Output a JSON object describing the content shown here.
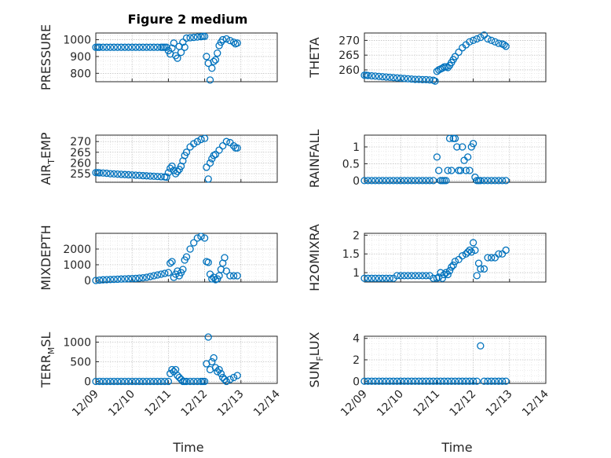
{
  "figure_title": "Figure 2 medium",
  "colors": {
    "series": "#0072BD",
    "axis": "#262626"
  },
  "chart_data": [
    {
      "type": "scatter",
      "title": "Figure 2 medium",
      "ylabel": "PRESSURE",
      "ylim": [
        750,
        1040
      ],
      "yticks": [
        800,
        900,
        1000
      ],
      "x": [
        0,
        0.05,
        0.1,
        0.2,
        0.3,
        0.4,
        0.5,
        0.6,
        0.7,
        0.8,
        0.9,
        1.0,
        1.1,
        1.2,
        1.3,
        1.4,
        1.5,
        1.6,
        1.7,
        1.8,
        1.85,
        1.9,
        1.95,
        2.0,
        2.05,
        2.1,
        2.15,
        2.2,
        2.25,
        2.3,
        2.35,
        2.4,
        2.45,
        2.5,
        2.6,
        2.7,
        2.8,
        2.9,
        2.95,
        3.0,
        3.05,
        3.1,
        3.15,
        3.2,
        3.25,
        3.3,
        3.35,
        3.4,
        3.45,
        3.5,
        3.6,
        3.7,
        3.8,
        3.85,
        3.9
      ],
      "y": [
        955,
        955,
        955,
        955,
        955,
        955,
        955,
        955,
        955,
        955,
        955,
        955,
        955,
        955,
        955,
        955,
        955,
        955,
        955,
        955,
        955,
        955,
        955,
        935,
        915,
        950,
        980,
        905,
        890,
        960,
        925,
        985,
        955,
        1010,
        1012,
        1014,
        1016,
        1018,
        1020,
        1020,
        900,
        860,
        760,
        830,
        870,
        880,
        920,
        965,
        985,
        1000,
        1005,
        995,
        985,
        975,
        980
      ],
      "grid": true
    },
    {
      "type": "scatter",
      "ylabel": "THETA",
      "ylim": [
        256,
        272.5
      ],
      "yticks": [
        260,
        265,
        270
      ],
      "x": [
        0,
        0.05,
        0.1,
        0.2,
        0.3,
        0.4,
        0.5,
        0.6,
        0.7,
        0.8,
        0.9,
        1.0,
        1.1,
        1.2,
        1.3,
        1.4,
        1.5,
        1.6,
        1.7,
        1.8,
        1.9,
        1.95,
        2.0,
        2.05,
        2.1,
        2.15,
        2.2,
        2.25,
        2.3,
        2.35,
        2.4,
        2.45,
        2.5,
        2.6,
        2.7,
        2.8,
        2.9,
        3.0,
        3.1,
        3.2,
        3.3,
        3.4,
        3.5,
        3.6,
        3.7,
        3.8,
        3.85,
        3.9
      ],
      "y": [
        258.2,
        258.2,
        258.1,
        258.0,
        257.9,
        257.8,
        257.7,
        257.6,
        257.5,
        257.4,
        257.3,
        257.2,
        257.1,
        257.0,
        256.9,
        256.8,
        256.8,
        256.7,
        256.7,
        256.6,
        256.5,
        256.2,
        259.5,
        260.0,
        260.3,
        260.6,
        261.0,
        261.0,
        260.8,
        261.5,
        262.5,
        263.5,
        264.5,
        266.0,
        267.5,
        268.5,
        269.5,
        270.0,
        270.5,
        271.0,
        271.8,
        270.5,
        270.0,
        269.5,
        269.0,
        268.8,
        268.5,
        268.0
      ],
      "grid": true
    },
    {
      "type": "scatter",
      "ylabel": "AIR_TEMP",
      "ylim": [
        251,
        273
      ],
      "yticks": [
        255,
        260,
        265,
        270
      ],
      "x": [
        0,
        0.05,
        0.1,
        0.2,
        0.3,
        0.4,
        0.5,
        0.6,
        0.7,
        0.8,
        0.9,
        1.0,
        1.1,
        1.2,
        1.3,
        1.4,
        1.5,
        1.6,
        1.7,
        1.8,
        1.9,
        1.95,
        2.0,
        2.05,
        2.1,
        2.15,
        2.2,
        2.25,
        2.3,
        2.35,
        2.4,
        2.45,
        2.5,
        2.6,
        2.7,
        2.8,
        2.9,
        3.0,
        3.05,
        3.1,
        3.15,
        3.2,
        3.25,
        3.3,
        3.4,
        3.5,
        3.6,
        3.7,
        3.8,
        3.85,
        3.9
      ],
      "y": [
        255.5,
        255.5,
        255.4,
        255.3,
        255.2,
        255.0,
        254.9,
        254.8,
        254.7,
        254.6,
        254.5,
        254.4,
        254.3,
        254.2,
        254.1,
        254.0,
        253.9,
        253.8,
        253.7,
        253.6,
        253.5,
        253.4,
        255.5,
        257.5,
        258.5,
        256.5,
        255.0,
        256.0,
        257.0,
        258.5,
        261.0,
        263.5,
        265.0,
        267.5,
        269.0,
        270.0,
        271.0,
        271.5,
        258.0,
        252.5,
        260.0,
        262.0,
        263.5,
        264.0,
        266.0,
        268.0,
        270.0,
        269.5,
        268.0,
        267.0,
        267.0
      ],
      "grid": true
    },
    {
      "type": "scatter",
      "ylabel": "RAINFALL",
      "ylim": [
        -0.05,
        1.35
      ],
      "yticks": [
        0,
        0.5,
        1
      ],
      "x": [
        0,
        0.1,
        0.2,
        0.3,
        0.4,
        0.5,
        0.6,
        0.7,
        0.8,
        0.9,
        1.0,
        1.1,
        1.2,
        1.3,
        1.4,
        1.5,
        1.6,
        1.7,
        1.8,
        1.9,
        2.0,
        2.05,
        2.1,
        2.15,
        2.2,
        2.25,
        2.3,
        2.35,
        2.4,
        2.45,
        2.5,
        2.55,
        2.6,
        2.65,
        2.7,
        2.75,
        2.8,
        2.85,
        2.9,
        2.95,
        3.0,
        3.05,
        3.1,
        3.15,
        3.2,
        3.3,
        3.4,
        3.5,
        3.6,
        3.7,
        3.8,
        3.9
      ],
      "y": [
        0,
        0,
        0,
        0,
        0,
        0,
        0,
        0,
        0,
        0,
        0,
        0,
        0,
        0,
        0,
        0,
        0,
        0,
        0,
        0,
        0.7,
        0.3,
        0,
        0,
        0,
        0,
        0.3,
        1.25,
        0.3,
        1.25,
        1.25,
        1.0,
        0.3,
        0.3,
        1.0,
        0.6,
        0.3,
        0.7,
        0.3,
        1.0,
        1.1,
        0.1,
        0,
        0,
        0,
        0,
        0,
        0,
        0,
        0,
        0,
        0
      ],
      "grid": true
    },
    {
      "type": "scatter",
      "ylabel": "MIXDEPTH",
      "ylim": [
        -100,
        3000
      ],
      "yticks": [
        0,
        1000,
        2000
      ],
      "x": [
        0,
        0.1,
        0.2,
        0.3,
        0.4,
        0.5,
        0.6,
        0.7,
        0.8,
        0.9,
        1.0,
        1.1,
        1.2,
        1.3,
        1.4,
        1.5,
        1.6,
        1.7,
        1.8,
        1.9,
        2.0,
        2.05,
        2.1,
        2.15,
        2.2,
        2.25,
        2.3,
        2.35,
        2.4,
        2.45,
        2.5,
        2.6,
        2.7,
        2.8,
        2.9,
        3.0,
        3.05,
        3.1,
        3.15,
        3.2,
        3.25,
        3.3,
        3.35,
        3.4,
        3.45,
        3.5,
        3.55,
        3.6,
        3.7,
        3.8,
        3.9
      ],
      "y": [
        0,
        20,
        40,
        50,
        60,
        70,
        80,
        90,
        100,
        110,
        120,
        130,
        150,
        170,
        200,
        250,
        300,
        350,
        400,
        450,
        500,
        1100,
        1200,
        200,
        400,
        600,
        300,
        500,
        700,
        1300,
        1500,
        2000,
        2400,
        2700,
        2800,
        2700,
        1200,
        1150,
        400,
        100,
        200,
        50,
        100,
        300,
        700,
        1100,
        1450,
        600,
        300,
        300,
        300
      ],
      "grid": true
    },
    {
      "type": "scatter",
      "ylabel": "H2OMIXRA",
      "ylim": [
        0.75,
        2.05
      ],
      "yticks": [
        1,
        1.5,
        2
      ],
      "x": [
        0,
        0.1,
        0.2,
        0.3,
        0.4,
        0.5,
        0.6,
        0.7,
        0.8,
        0.9,
        1.0,
        1.1,
        1.2,
        1.3,
        1.4,
        1.5,
        1.6,
        1.7,
        1.8,
        1.9,
        2.0,
        2.05,
        2.1,
        2.15,
        2.2,
        2.25,
        2.3,
        2.35,
        2.4,
        2.45,
        2.5,
        2.6,
        2.7,
        2.8,
        2.85,
        2.9,
        2.95,
        3.0,
        3.05,
        3.1,
        3.15,
        3.2,
        3.3,
        3.4,
        3.5,
        3.6,
        3.7,
        3.8,
        3.9
      ],
      "y": [
        0.85,
        0.85,
        0.85,
        0.85,
        0.85,
        0.85,
        0.85,
        0.85,
        0.85,
        0.92,
        0.92,
        0.92,
        0.92,
        0.92,
        0.92,
        0.92,
        0.92,
        0.92,
        0.92,
        0.85,
        0.85,
        0.88,
        1.0,
        0.85,
        0.95,
        1.0,
        0.95,
        1.05,
        1.15,
        1.2,
        1.3,
        1.35,
        1.45,
        1.5,
        1.55,
        1.6,
        1.55,
        1.8,
        1.6,
        0.92,
        1.25,
        1.1,
        1.1,
        1.4,
        1.4,
        1.4,
        1.5,
        1.5,
        1.6
      ],
      "grid": true
    },
    {
      "type": "scatter",
      "ylabel": "TERR_MSL",
      "ylim": [
        -50,
        1150
      ],
      "yticks": [
        0,
        500,
        1000
      ],
      "x": [
        0,
        0.1,
        0.2,
        0.3,
        0.4,
        0.5,
        0.6,
        0.7,
        0.8,
        0.9,
        1.0,
        1.1,
        1.2,
        1.3,
        1.4,
        1.5,
        1.6,
        1.7,
        1.8,
        1.9,
        2.0,
        2.05,
        2.1,
        2.15,
        2.2,
        2.25,
        2.3,
        2.35,
        2.4,
        2.45,
        2.5,
        2.6,
        2.7,
        2.8,
        2.9,
        2.95,
        3.0,
        3.05,
        3.1,
        3.15,
        3.2,
        3.25,
        3.3,
        3.35,
        3.4,
        3.45,
        3.5,
        3.55,
        3.6,
        3.7,
        3.8,
        3.9
      ],
      "y": [
        0,
        0,
        0,
        0,
        0,
        0,
        0,
        0,
        0,
        0,
        0,
        0,
        0,
        0,
        0,
        0,
        0,
        0,
        0,
        0,
        0,
        200,
        300,
        250,
        300,
        150,
        100,
        50,
        0,
        0,
        0,
        0,
        0,
        0,
        0,
        0,
        0,
        450,
        1130,
        300,
        500,
        600,
        350,
        250,
        300,
        200,
        100,
        50,
        0,
        50,
        100,
        150
      ],
      "grid": true
    },
    {
      "type": "scatter",
      "ylabel": "SUN_FLUX",
      "ylim": [
        -0.2,
        4.2
      ],
      "yticks": [
        0,
        2,
        4
      ],
      "x": [
        0,
        0.1,
        0.2,
        0.3,
        0.4,
        0.5,
        0.6,
        0.7,
        0.8,
        0.9,
        1.0,
        1.1,
        1.2,
        1.3,
        1.4,
        1.5,
        1.6,
        1.7,
        1.8,
        1.9,
        2.0,
        2.1,
        2.2,
        2.3,
        2.4,
        2.5,
        2.6,
        2.7,
        2.8,
        2.9,
        3.0,
        3.1,
        3.2,
        3.3,
        3.4,
        3.5,
        3.6,
        3.7,
        3.8,
        3.9
      ],
      "y": [
        0,
        0,
        0,
        0,
        0,
        0,
        0,
        0,
        0,
        0,
        0,
        0,
        0,
        0,
        0,
        0,
        0,
        0,
        0,
        0,
        0,
        0,
        0,
        0,
        0,
        0,
        0,
        0,
        0,
        0,
        0,
        0,
        3.3,
        0,
        0,
        0,
        0,
        0,
        0,
        0
      ],
      "grid": true
    }
  ],
  "x_axis": {
    "xlim": [
      0,
      5
    ],
    "tick_labels": [
      "12/09",
      "12/10",
      "12/11",
      "12/12",
      "12/13",
      "12/14"
    ],
    "xlabel": "Time"
  },
  "ylabels_display": [
    {
      "main": "PRESSURE",
      "sub": "",
      "tail": ""
    },
    {
      "main": "THETA",
      "sub": "",
      "tail": ""
    },
    {
      "main": "AIR",
      "sub": "T",
      "tail": "EMP"
    },
    {
      "main": "RAINFALL",
      "sub": "",
      "tail": ""
    },
    {
      "main": "MIXDEPTH",
      "sub": "",
      "tail": ""
    },
    {
      "main": "H2OMIXRA",
      "sub": "",
      "tail": ""
    },
    {
      "main": "TERR",
      "sub": "M",
      "tail": "SL"
    },
    {
      "main": "SUN",
      "sub": "F",
      "tail": "LUX"
    }
  ]
}
